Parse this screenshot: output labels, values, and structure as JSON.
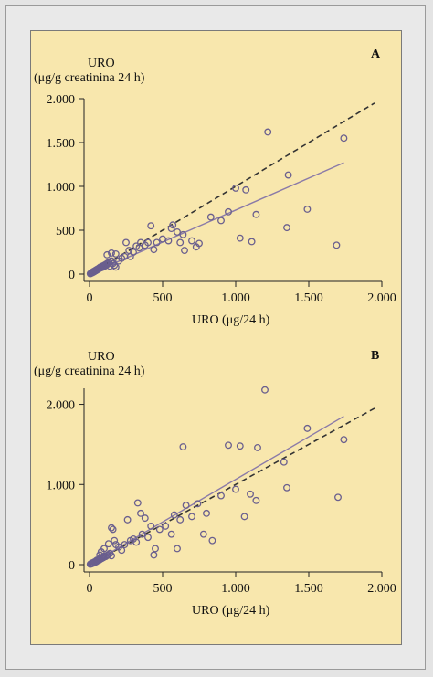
{
  "chart_data": [
    {
      "type": "scatter",
      "panel_label": "A",
      "ylabel_line1": "URO",
      "ylabel_line2": "(μg/g creatinina 24 h)",
      "xlabel": "URO (μg/24 h)",
      "xlim": [
        0,
        2000
      ],
      "ylim": [
        0,
        2000
      ],
      "xticks": [
        0,
        500,
        1000,
        1500,
        2000
      ],
      "xtick_labels": [
        "0",
        "500",
        "1.000",
        "1.500",
        "2.000"
      ],
      "yticks": [
        0,
        500,
        1000,
        1500,
        2000
      ],
      "ytick_labels": [
        "0",
        "500",
        "1.000",
        "1.500",
        "2.000"
      ],
      "identity_line": {
        "x": [
          0,
          1950
        ],
        "y": [
          0,
          1950
        ],
        "style": "dashed"
      },
      "regression_line": {
        "x": [
          0,
          1740
        ],
        "y": [
          0,
          1270
        ],
        "style": "solid",
        "color": "#8a7aa8"
      },
      "marker_color": "#6a5f8e",
      "points": [
        [
          5,
          5
        ],
        [
          10,
          10
        ],
        [
          15,
          12
        ],
        [
          18,
          20
        ],
        [
          22,
          18
        ],
        [
          25,
          28
        ],
        [
          30,
          25
        ],
        [
          32,
          35
        ],
        [
          35,
          30
        ],
        [
          40,
          38
        ],
        [
          42,
          45
        ],
        [
          45,
          40
        ],
        [
          50,
          48
        ],
        [
          52,
          55
        ],
        [
          55,
          50
        ],
        [
          60,
          58
        ],
        [
          62,
          65
        ],
        [
          65,
          60
        ],
        [
          70,
          68
        ],
        [
          72,
          78
        ],
        [
          75,
          70
        ],
        [
          80,
          82
        ],
        [
          85,
          75
        ],
        [
          88,
          90
        ],
        [
          90,
          85
        ],
        [
          95,
          95
        ],
        [
          100,
          100
        ],
        [
          105,
          92
        ],
        [
          110,
          110
        ],
        [
          115,
          105
        ],
        [
          120,
          120
        ],
        [
          125,
          115
        ],
        [
          130,
          132
        ],
        [
          135,
          125
        ],
        [
          140,
          90
        ],
        [
          150,
          150
        ],
        [
          160,
          120
        ],
        [
          170,
          100
        ],
        [
          180,
          80
        ],
        [
          120,
          220
        ],
        [
          150,
          240
        ],
        [
          180,
          230
        ],
        [
          200,
          150
        ],
        [
          220,
          180
        ],
        [
          240,
          200
        ],
        [
          250,
          360
        ],
        [
          270,
          270
        ],
        [
          280,
          200
        ],
        [
          300,
          250
        ],
        [
          320,
          320
        ],
        [
          340,
          300
        ],
        [
          350,
          360
        ],
        [
          380,
          330
        ],
        [
          400,
          360
        ],
        [
          420,
          550
        ],
        [
          440,
          280
        ],
        [
          460,
          360
        ],
        [
          500,
          400
        ],
        [
          540,
          380
        ],
        [
          560,
          520
        ],
        [
          570,
          560
        ],
        [
          600,
          480
        ],
        [
          620,
          360
        ],
        [
          640,
          450
        ],
        [
          650,
          270
        ],
        [
          700,
          380
        ],
        [
          730,
          310
        ],
        [
          750,
          350
        ],
        [
          830,
          650
        ],
        [
          900,
          610
        ],
        [
          950,
          710
        ],
        [
          1000,
          980
        ],
        [
          1030,
          410
        ],
        [
          1070,
          960
        ],
        [
          1110,
          370
        ],
        [
          1140,
          680
        ],
        [
          1220,
          1620
        ],
        [
          1350,
          530
        ],
        [
          1360,
          1130
        ],
        [
          1490,
          740
        ],
        [
          1690,
          330
        ],
        [
          1740,
          1550
        ]
      ]
    },
    {
      "type": "scatter",
      "panel_label": "B",
      "ylabel_line1": "URO",
      "ylabel_line2": "(μg/g creatinina 24 h)",
      "xlabel": "URO (μg/24 h)",
      "xlim": [
        0,
        2000
      ],
      "ylim": [
        0,
        2200
      ],
      "xticks": [
        0,
        500,
        1000,
        1500,
        2000
      ],
      "xtick_labels": [
        "0",
        "500",
        "1.000",
        "1.500",
        "2.000"
      ],
      "yticks": [
        0,
        1000,
        2000
      ],
      "ytick_labels": [
        "0",
        "1.000",
        "2.000"
      ],
      "identity_line": {
        "x": [
          0,
          1950
        ],
        "y": [
          0,
          1950
        ],
        "style": "dashed"
      },
      "regression_line": {
        "x": [
          0,
          1740
        ],
        "y": [
          0,
          1850
        ],
        "style": "solid",
        "color": "#8a7aa8"
      },
      "marker_color": "#6a5f8e",
      "points": [
        [
          5,
          5
        ],
        [
          10,
          12
        ],
        [
          15,
          10
        ],
        [
          20,
          22
        ],
        [
          25,
          18
        ],
        [
          30,
          30
        ],
        [
          35,
          28
        ],
        [
          40,
          40
        ],
        [
          45,
          35
        ],
        [
          50,
          55
        ],
        [
          55,
          48
        ],
        [
          60,
          62
        ],
        [
          65,
          55
        ],
        [
          70,
          75
        ],
        [
          75,
          68
        ],
        [
          80,
          85
        ],
        [
          85,
          78
        ],
        [
          90,
          95
        ],
        [
          95,
          88
        ],
        [
          100,
          105
        ],
        [
          110,
          100
        ],
        [
          120,
          115
        ],
        [
          130,
          125
        ],
        [
          140,
          140
        ],
        [
          150,
          110
        ],
        [
          70,
          120
        ],
        [
          80,
          160
        ],
        [
          100,
          200
        ],
        [
          130,
          260
        ],
        [
          150,
          460
        ],
        [
          160,
          440
        ],
        [
          170,
          300
        ],
        [
          180,
          250
        ],
        [
          200,
          220
        ],
        [
          220,
          180
        ],
        [
          240,
          250
        ],
        [
          260,
          560
        ],
        [
          280,
          300
        ],
        [
          300,
          320
        ],
        [
          320,
          280
        ],
        [
          330,
          770
        ],
        [
          350,
          640
        ],
        [
          360,
          380
        ],
        [
          380,
          580
        ],
        [
          400,
          340
        ],
        [
          420,
          480
        ],
        [
          440,
          120
        ],
        [
          450,
          200
        ],
        [
          480,
          440
        ],
        [
          520,
          480
        ],
        [
          560,
          380
        ],
        [
          580,
          620
        ],
        [
          600,
          200
        ],
        [
          620,
          560
        ],
        [
          640,
          1470
        ],
        [
          660,
          740
        ],
        [
          700,
          600
        ],
        [
          740,
          760
        ],
        [
          780,
          380
        ],
        [
          800,
          640
        ],
        [
          840,
          300
        ],
        [
          900,
          860
        ],
        [
          950,
          1490
        ],
        [
          1000,
          940
        ],
        [
          1030,
          1480
        ],
        [
          1060,
          600
        ],
        [
          1100,
          880
        ],
        [
          1140,
          800
        ],
        [
          1150,
          1460
        ],
        [
          1200,
          2180
        ],
        [
          1330,
          1280
        ],
        [
          1350,
          960
        ],
        [
          1490,
          1700
        ],
        [
          1700,
          840
        ],
        [
          1740,
          1560
        ]
      ]
    }
  ]
}
